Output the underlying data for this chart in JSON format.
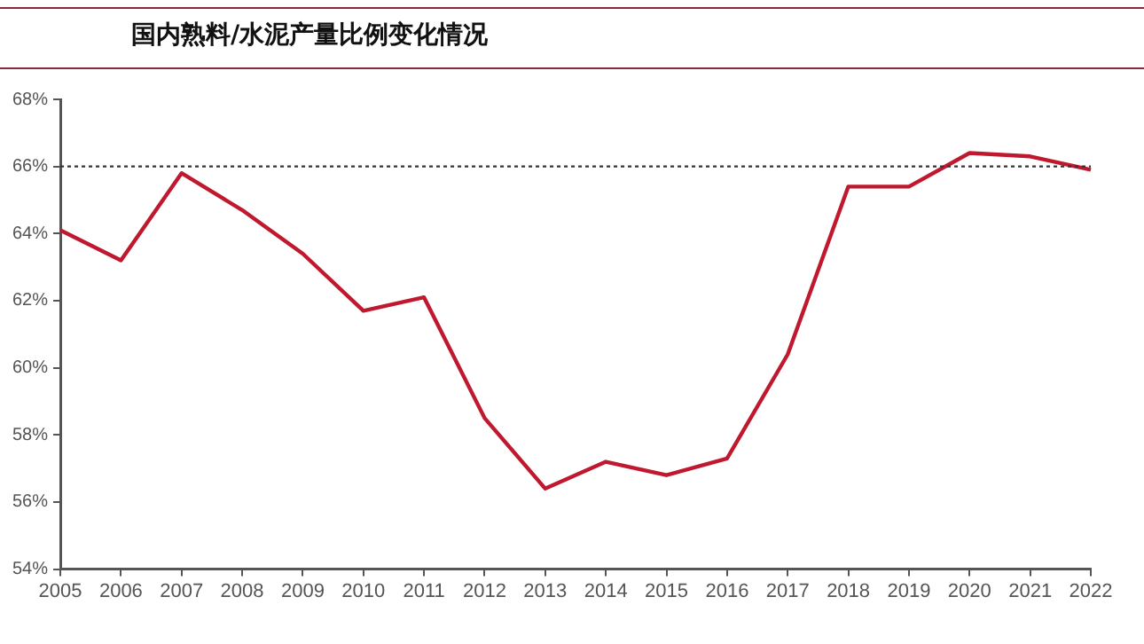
{
  "chart_data": {
    "type": "line",
    "title": "国内熟料/水泥产量比例变化情况",
    "categories": [
      "2005",
      "2006",
      "2007",
      "2008",
      "2009",
      "2010",
      "2011",
      "2012",
      "2013",
      "2014",
      "2015",
      "2016",
      "2017",
      "2018",
      "2019",
      "2020",
      "2021",
      "2022"
    ],
    "series": [
      {
        "color": "#c0182e",
        "values": [
          64.1,
          63.2,
          65.8,
          64.7,
          63.4,
          61.7,
          62.1,
          58.5,
          56.4,
          57.2,
          56.8,
          57.3,
          60.4,
          65.4,
          65.4,
          66.4,
          66.3,
          65.9
        ]
      }
    ],
    "ylim": [
      54,
      68
    ],
    "yticks": [
      {
        "value": 54,
        "label": "54%"
      },
      {
        "value": 56,
        "label": "56%"
      },
      {
        "value": 58,
        "label": "58%"
      },
      {
        "value": 60,
        "label": "60%"
      },
      {
        "value": 62,
        "label": "62%"
      },
      {
        "value": 64,
        "label": "64%"
      },
      {
        "value": 66,
        "label": "66%"
      },
      {
        "value": 68,
        "label": "68%"
      }
    ],
    "ref_lines": [
      {
        "axis": "y",
        "value": 66,
        "color": "#333333",
        "line_style": "dotted"
      }
    ],
    "grid": false,
    "legend": false,
    "marker": "none",
    "line_style": "solid"
  }
}
